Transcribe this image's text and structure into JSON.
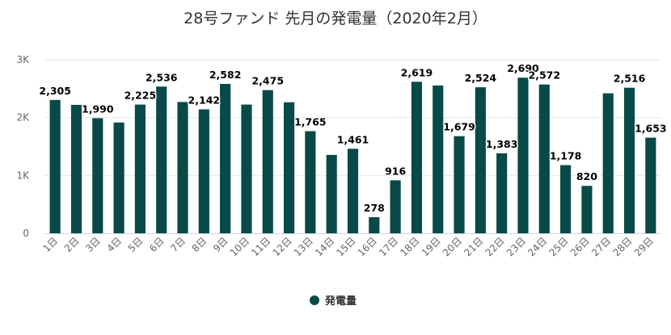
{
  "chart_data": {
    "type": "bar",
    "title": "28号ファンド 先月の発電量（2020年2月）",
    "categories": [
      "1日",
      "2日",
      "3日",
      "4日",
      "5日",
      "6日",
      "7日",
      "8日",
      "9日",
      "10日",
      "11日",
      "12日",
      "13日",
      "14日",
      "15日",
      "16日",
      "17日",
      "18日",
      "19日",
      "20日",
      "21日",
      "22日",
      "23日",
      "24日",
      "25日",
      "26日",
      "27日",
      "28日",
      "29日"
    ],
    "series": [
      {
        "name": "発電量",
        "color": "#074a48",
        "values": [
          2305,
          2220,
          1990,
          1915,
          2225,
          2536,
          2270,
          2142,
          2582,
          2225,
          2475,
          2265,
          1765,
          1355,
          1461,
          278,
          916,
          2619,
          2555,
          1679,
          2524,
          1383,
          2690,
          2572,
          1178,
          820,
          2420,
          2516,
          1653
        ],
        "data_labels": [
          "2,305",
          null,
          "1,990",
          null,
          "2,225",
          "2,536",
          null,
          "2,142",
          "2,582",
          null,
          "2,475",
          null,
          "1,765",
          null,
          "1,461",
          "278",
          "916",
          "2,619",
          null,
          "1,679",
          "2,524",
          "1,383",
          "2,690",
          "2,572",
          "1,178",
          "820",
          null,
          "2,516",
          "1,653"
        ]
      }
    ],
    "y_ticks": [
      {
        "value": 0,
        "label": "0"
      },
      {
        "value": 1000,
        "label": "1K"
      },
      {
        "value": 2000,
        "label": "2K"
      },
      {
        "value": 3000,
        "label": "3K"
      }
    ],
    "ylim": [
      0,
      3000
    ],
    "grid": true,
    "legend_position": "bottom-center"
  }
}
